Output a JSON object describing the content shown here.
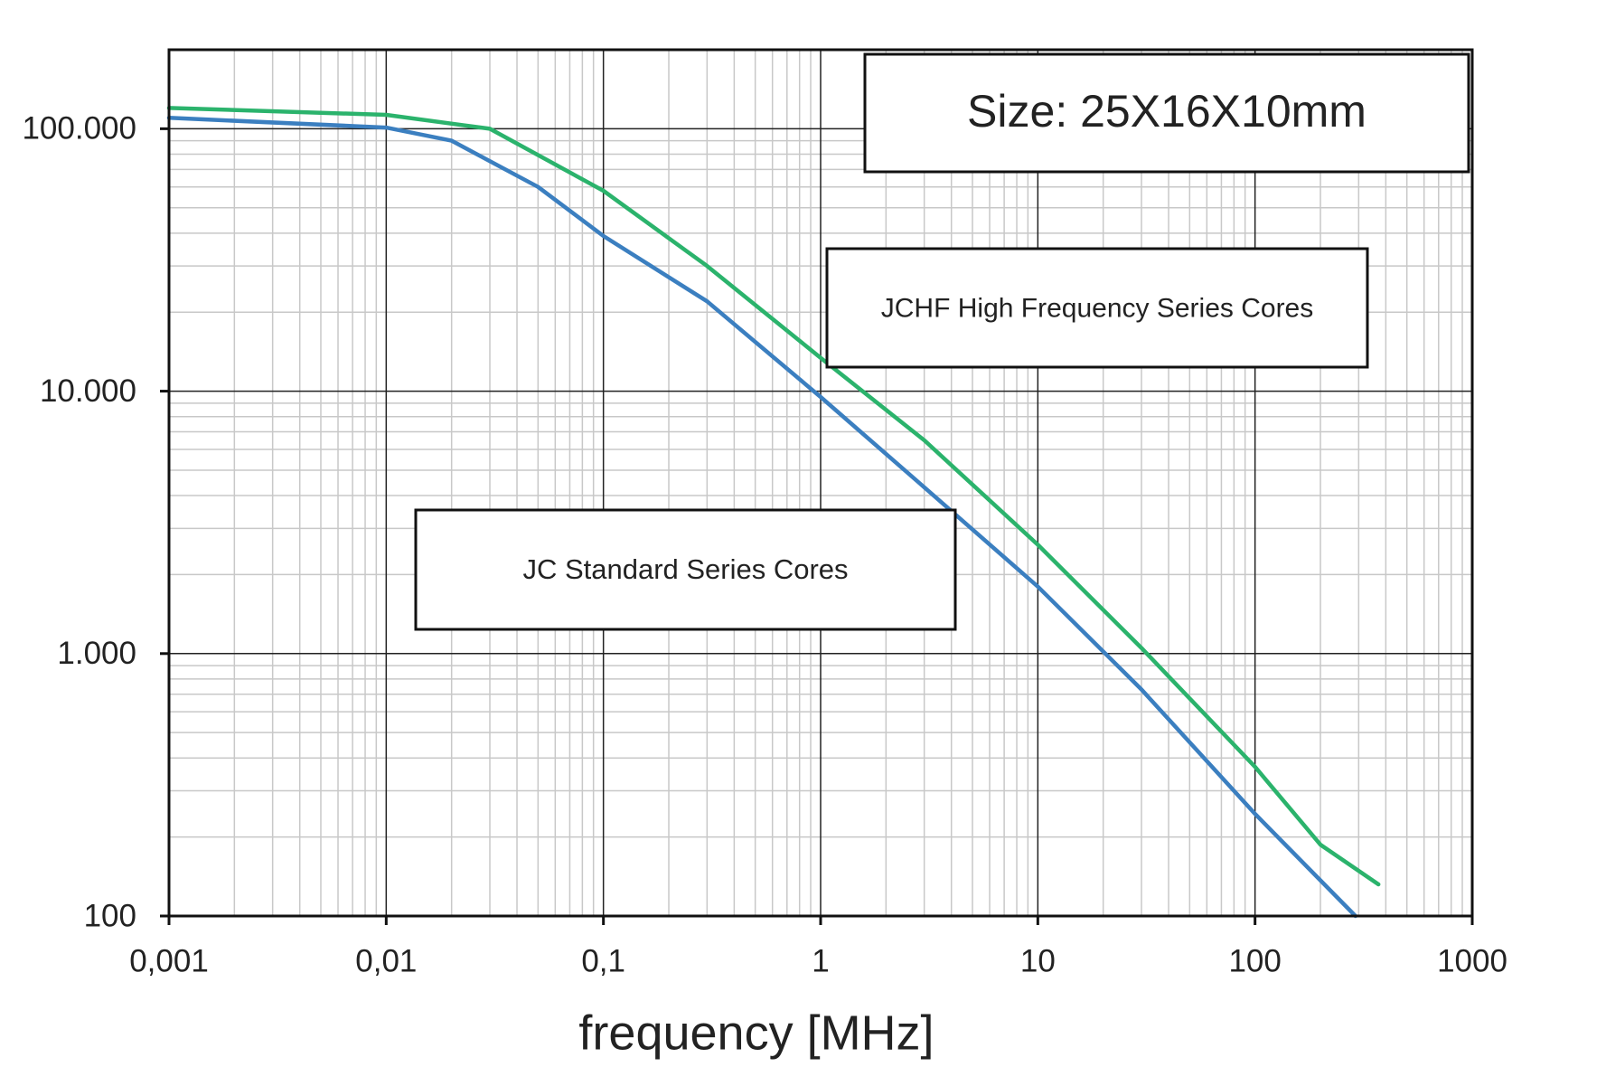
{
  "chart_data": {
    "type": "line",
    "x_label": "frequency [MHz]",
    "log_x": true,
    "log_y": true,
    "grid": true,
    "xlim": [
      0.001,
      1000
    ],
    "ylim": [
      100,
      200000
    ],
    "xticks": [
      {
        "value": 0.001,
        "label": "0,001"
      },
      {
        "value": 0.01,
        "label": "0,01"
      },
      {
        "value": 0.1,
        "label": "0,1"
      },
      1,
      10,
      100,
      1000
    ],
    "yticks": [
      100,
      {
        "value": 1000,
        "label": "1.000"
      },
      {
        "value": 10000,
        "label": "10.000"
      },
      {
        "value": 100000,
        "label": "100.000"
      }
    ],
    "annotations": [
      "Size: 25X16X10mm",
      "JCHF High Frequency Series Cores",
      "JC Standard Series Cores"
    ],
    "series": [
      {
        "color": "#3b7fc0",
        "x": [
          0.001,
          0.01,
          0.02,
          0.05,
          0.1,
          0.3,
          1,
          3,
          10,
          30,
          100,
          290
        ],
        "values": [
          110000,
          101000,
          90000,
          60000,
          39000,
          22000,
          9500,
          4300,
          1800,
          730,
          245,
          100
        ]
      },
      {
        "color": "#2bb36c",
        "x": [
          0.001,
          0.01,
          0.03,
          0.1,
          0.3,
          1,
          3,
          10,
          30,
          100,
          200,
          370
        ],
        "values": [
          120000,
          113000,
          100000,
          58000,
          30000,
          13400,
          6500,
          2600,
          1050,
          370,
          187,
          132
        ]
      }
    ]
  }
}
